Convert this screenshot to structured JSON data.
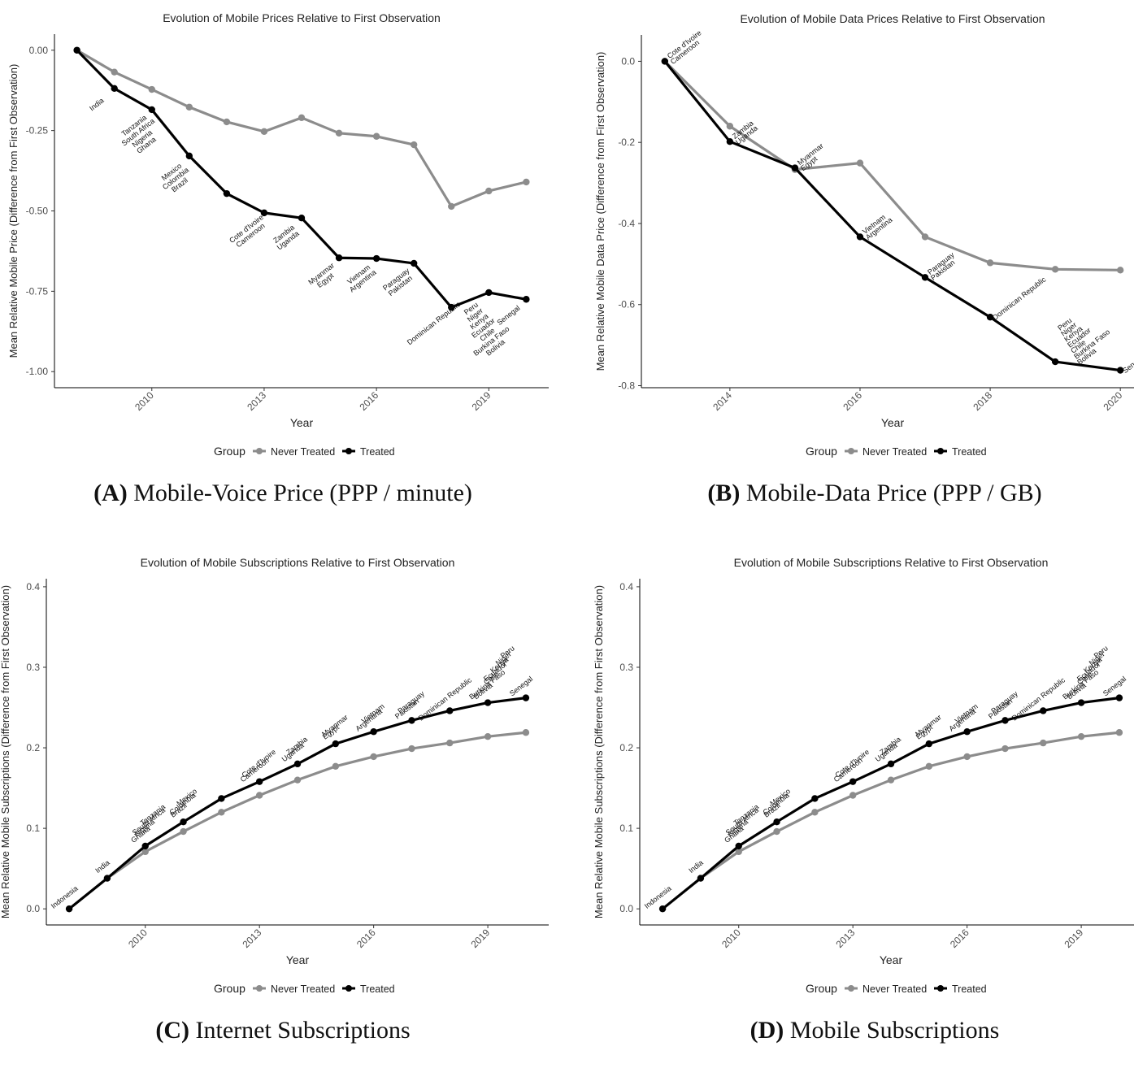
{
  "chart_data": [
    {
      "type": "line",
      "title": "Evolution of Mobile Prices Relative to First Observation",
      "x_label": "Year",
      "y_label": "Mean Relative Mobile Price (Difference from First Observation)",
      "caption_label": "(A)",
      "caption": "Mobile-Voice Price (PPP / minute)",
      "legend_title": "Group",
      "legend": "bottom",
      "x": [
        2008,
        2009,
        2010,
        2011,
        2012,
        2013,
        2014,
        2015,
        2016,
        2017,
        2018,
        2019,
        2020
      ],
      "series": [
        {
          "name": "Never Treated",
          "color": "#8c8c8c",
          "values": [
            0,
            -0.068,
            -0.122,
            -0.177,
            -0.223,
            -0.253,
            -0.21,
            -0.258,
            -0.268,
            -0.294,
            -0.486,
            -0.438,
            -0.41
          ]
        },
        {
          "name": "Treated",
          "color": "#000000",
          "values": [
            0,
            -0.119,
            -0.185,
            -0.329,
            -0.446,
            -0.506,
            -0.522,
            -0.646,
            -0.648,
            -0.663,
            -0.8,
            -0.754,
            -0.775
          ]
        }
      ],
      "xlim": [
        2007.4,
        2020.6
      ],
      "xticks": [
        2010,
        2013,
        2016,
        2019
      ],
      "ylim": [
        -1.05,
        0.05
      ],
      "yticks": [
        {
          "value": 0,
          "label": "0.00"
        },
        -0.25,
        {
          "value": -0.5,
          "label": "-0.50"
        },
        -0.75,
        {
          "value": -1,
          "label": "-1.00"
        }
      ],
      "annotations": [
        {
          "x": 2009,
          "labels": [
            "India"
          ]
        },
        {
          "x": 2010,
          "labels": [
            "Tanzania",
            "South Africa",
            "Nigeria",
            "Ghana"
          ]
        },
        {
          "x": 2011,
          "labels": [
            "Mexico",
            "Colombia",
            "Brazil"
          ]
        },
        {
          "x": 2013,
          "labels": [
            "Cote d'Ivoire",
            "Cameroon"
          ]
        },
        {
          "x": 2014,
          "labels": [
            "Zambia",
            "Uganda"
          ]
        },
        {
          "x": 2015,
          "labels": [
            "Myanmar",
            "Egypt"
          ]
        },
        {
          "x": 2016,
          "labels": [
            "Vietnam",
            "Argentina"
          ]
        },
        {
          "x": 2017,
          "labels": [
            "Paraguay",
            "Pakistan"
          ]
        },
        {
          "x": 2018,
          "labels": [
            "Dominican Republic"
          ]
        },
        {
          "x": 2019,
          "labels": [
            "Peru",
            "Niger",
            "Kenya",
            "Ecuador",
            "Chile",
            "Burkina Faso",
            "Bolivia"
          ]
        },
        {
          "x": 2020,
          "labels": [
            "Senegal"
          ]
        }
      ]
    },
    {
      "type": "line",
      "title": "Evolution of Mobile Data Prices Relative to First Observation",
      "x_label": "Year",
      "y_label": "Mean Relative Mobile Data Price (Difference from First Observation)",
      "caption_label": "(B)",
      "caption": "Mobile-Data Price (PPP / GB)",
      "legend_title": "Group",
      "legend": "bottom",
      "x": [
        2013,
        2014,
        2015,
        2016,
        2017,
        2018,
        2019,
        2020
      ],
      "series": [
        {
          "name": "Never Treated",
          "color": "#8c8c8c",
          "values": [
            0,
            -0.16,
            -0.267,
            -0.251,
            -0.433,
            -0.497,
            -0.513,
            -0.515
          ]
        },
        {
          "name": "Treated",
          "color": "#000000",
          "values": [
            0,
            -0.198,
            -0.263,
            -0.433,
            -0.533,
            -0.631,
            -0.741,
            -0.762
          ]
        }
      ],
      "xlim": [
        2012.64,
        2020.36
      ],
      "xticks": [
        2014,
        2016,
        2018,
        2020
      ],
      "ylim": [
        -0.805,
        0.065
      ],
      "yticks": [
        {
          "value": 0,
          "label": "0.0"
        },
        -0.2,
        -0.4,
        -0.6,
        -0.8
      ],
      "annotations": [
        {
          "x": 2013,
          "labels": [
            "Cote d'Ivoire",
            "Cameroon"
          ]
        },
        {
          "x": 2014,
          "labels": [
            "Zambia",
            "Uganda"
          ]
        },
        {
          "x": 2015,
          "labels": [
            "Myanmar",
            "Egypt"
          ]
        },
        {
          "x": 2016,
          "labels": [
            "Vietnam",
            "Argentina"
          ]
        },
        {
          "x": 2017,
          "labels": [
            "Paraguay",
            "Pakistan"
          ]
        },
        {
          "x": 2018,
          "labels": [
            "Dominican Republic"
          ]
        },
        {
          "x": 2019,
          "labels": [
            "Peru",
            "Niger",
            "Kenya",
            "Ecuador",
            "Chile",
            "Burkina Faso",
            "Bolivia"
          ]
        },
        {
          "x": 2020,
          "labels": [
            "Senegal"
          ]
        }
      ]
    },
    {
      "type": "line",
      "title": "Evolution of Mobile Subscriptions Relative to First Observation",
      "x_label": "Year",
      "y_label": "Mean Relative Mobile Subscriptions (Difference from First Observation)",
      "caption_label": "(C)",
      "caption": "Internet Subscriptions",
      "legend_title": "Group",
      "legend": "bottom",
      "x": [
        2008,
        2009,
        2010,
        2011,
        2012,
        2013,
        2014,
        2015,
        2016,
        2017,
        2018,
        2019,
        2020
      ],
      "series": [
        {
          "name": "Never Treated",
          "color": "#8c8c8c",
          "values": [
            0,
            0.038,
            0.071,
            0.096,
            0.12,
            0.141,
            0.16,
            0.177,
            0.189,
            0.199,
            0.206,
            0.214,
            0.219
          ]
        },
        {
          "name": "Treated",
          "color": "#000000",
          "values": [
            0,
            0.038,
            0.078,
            0.108,
            0.137,
            0.158,
            0.18,
            0.205,
            0.22,
            0.234,
            0.246,
            0.256,
            0.262
          ]
        }
      ],
      "xlim": [
        2007.4,
        2020.6
      ],
      "xticks": [
        2010,
        2013,
        2016,
        2019
      ],
      "ylim": [
        -0.02,
        0.41
      ],
      "yticks": [
        {
          "value": 0,
          "label": "0.0"
        },
        0.1,
        0.2,
        0.3,
        0.4
      ],
      "annotations": [
        {
          "x": 2008,
          "labels": [
            "Indonesia"
          ]
        },
        {
          "x": 2009,
          "labels": [
            "India"
          ]
        },
        {
          "x": 2010,
          "labels": [
            "Tanzania",
            "South Africa",
            "Nigeria",
            "Ghana"
          ]
        },
        {
          "x": 2011,
          "labels": [
            "Mexico",
            "Colombia",
            "Brazil"
          ]
        },
        {
          "x": 2013,
          "labels": [
            "Cote d'Ivoire",
            "Cameroon"
          ]
        },
        {
          "x": 2014,
          "labels": [
            "Zambia",
            "Uganda"
          ]
        },
        {
          "x": 2015,
          "labels": [
            "Myanmar",
            "Egypt"
          ]
        },
        {
          "x": 2016,
          "labels": [
            "Vietnam",
            "Argentina"
          ]
        },
        {
          "x": 2017,
          "labels": [
            "Paraguay",
            "Pakistan"
          ]
        },
        {
          "x": 2018,
          "labels": [
            "Dominican Republic"
          ]
        },
        {
          "x": 2019,
          "labels": [
            "Peru",
            "Niger",
            "Kenya",
            "Ecuador",
            "Chile",
            "Burkina Faso",
            "Bolivia"
          ]
        },
        {
          "x": 2020,
          "labels": [
            "Senegal"
          ]
        }
      ]
    },
    {
      "type": "line",
      "title": "Evolution of Mobile Subscriptions Relative to First Observation",
      "x_label": "Year",
      "y_label": "Mean Relative Mobile Subscriptions (Difference from First Observation)",
      "caption_label": "(D)",
      "caption": "Mobile Subscriptions",
      "legend_title": "Group",
      "legend": "bottom",
      "x": [
        2008,
        2009,
        2010,
        2011,
        2012,
        2013,
        2014,
        2015,
        2016,
        2017,
        2018,
        2019,
        2020
      ],
      "series": [
        {
          "name": "Never Treated",
          "color": "#8c8c8c",
          "values": [
            0,
            0.038,
            0.071,
            0.096,
            0.12,
            0.141,
            0.16,
            0.177,
            0.189,
            0.199,
            0.206,
            0.214,
            0.219
          ]
        },
        {
          "name": "Treated",
          "color": "#000000",
          "values": [
            0,
            0.038,
            0.078,
            0.108,
            0.137,
            0.158,
            0.18,
            0.205,
            0.22,
            0.234,
            0.246,
            0.256,
            0.262
          ]
        }
      ],
      "xlim": [
        2007.4,
        2020.6
      ],
      "xticks": [
        2010,
        2013,
        2016,
        2019
      ],
      "ylim": [
        -0.02,
        0.41
      ],
      "yticks": [
        {
          "value": 0,
          "label": "0.0"
        },
        0.1,
        0.2,
        0.3,
        0.4
      ],
      "annotations": [
        {
          "x": 2008,
          "labels": [
            "Indonesia"
          ]
        },
        {
          "x": 2009,
          "labels": [
            "India"
          ]
        },
        {
          "x": 2010,
          "labels": [
            "Tanzania",
            "South Africa",
            "Nigeria",
            "Ghana"
          ]
        },
        {
          "x": 2011,
          "labels": [
            "Mexico",
            "Colombia",
            "Brazil"
          ]
        },
        {
          "x": 2013,
          "labels": [
            "Cote d'Ivoire",
            "Cameroon"
          ]
        },
        {
          "x": 2014,
          "labels": [
            "Zambia",
            "Uganda"
          ]
        },
        {
          "x": 2015,
          "labels": [
            "Myanmar",
            "Egypt"
          ]
        },
        {
          "x": 2016,
          "labels": [
            "Vietnam",
            "Argentina"
          ]
        },
        {
          "x": 2017,
          "labels": [
            "Paraguay",
            "Pakistan"
          ]
        },
        {
          "x": 2018,
          "labels": [
            "Dominican Republic"
          ]
        },
        {
          "x": 2019,
          "labels": [
            "Peru",
            "Niger",
            "Kenya",
            "Ecuador",
            "Chile",
            "Burkina Faso",
            "Bolivia"
          ]
        },
        {
          "x": 2020,
          "labels": [
            "Senegal"
          ]
        }
      ]
    }
  ]
}
